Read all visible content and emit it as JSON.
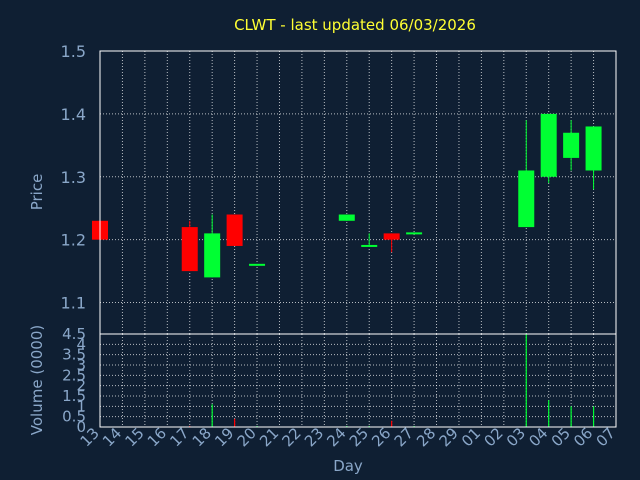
{
  "chart_data": {
    "type": "candlestick",
    "title": "CLWT - last updated 06/03/2026",
    "xlabel": "Day",
    "colors": {
      "background": "#0f1f33",
      "up": "#00ff33",
      "down": "#ff0000",
      "title": "#ffff33",
      "axis_text": "#8aa7c9",
      "grid": "#ffffff"
    },
    "x_ticks": [
      "13",
      "14",
      "15",
      "16",
      "17",
      "18",
      "19",
      "20",
      "21",
      "22",
      "23",
      "24",
      "25",
      "26",
      "27",
      "28",
      "29",
      "01",
      "02",
      "03",
      "04",
      "05",
      "06",
      "07"
    ],
    "price_panel": {
      "ylabel": "Price",
      "ylim": [
        1.05,
        1.5
      ],
      "y_ticks": [
        "1.1",
        "1.2",
        "1.3",
        "1.4",
        "1.5"
      ],
      "y_tick_values": [
        1.1,
        1.2,
        1.3,
        1.4,
        1.5
      ],
      "candles": [
        {
          "day": "13",
          "open": 1.23,
          "high": 1.23,
          "low": 1.2,
          "close": 1.2
        },
        {
          "day": "17",
          "open": 1.22,
          "high": 1.23,
          "low": 1.15,
          "close": 1.15
        },
        {
          "day": "18",
          "open": 1.14,
          "high": 1.24,
          "low": 1.14,
          "close": 1.21
        },
        {
          "day": "19",
          "open": 1.24,
          "high": 1.24,
          "low": 1.19,
          "close": 1.19
        },
        {
          "day": "20",
          "open": 1.16,
          "high": 1.16,
          "low": 1.16,
          "close": 1.16
        },
        {
          "day": "24",
          "open": 1.23,
          "high": 1.24,
          "low": 1.23,
          "close": 1.24
        },
        {
          "day": "25",
          "open": 1.19,
          "high": 1.21,
          "low": 1.19,
          "close": 1.19
        },
        {
          "day": "26",
          "open": 1.21,
          "high": 1.21,
          "low": 1.18,
          "close": 1.2
        },
        {
          "day": "27",
          "open": 1.21,
          "high": 1.21,
          "low": 1.21,
          "close": 1.21
        },
        {
          "day": "03",
          "open": 1.22,
          "high": 1.39,
          "low": 1.22,
          "close": 1.31
        },
        {
          "day": "04",
          "open": 1.3,
          "high": 1.4,
          "low": 1.29,
          "close": 1.4
        },
        {
          "day": "05",
          "open": 1.33,
          "high": 1.39,
          "low": 1.31,
          "close": 1.37
        },
        {
          "day": "06",
          "open": 1.31,
          "high": 1.38,
          "low": 1.28,
          "close": 1.38
        }
      ]
    },
    "volume_panel": {
      "ylabel": "Volume (0000)",
      "ylim": [
        0,
        4.5
      ],
      "y_ticks": [
        "0",
        "0.5",
        "1",
        "1.5",
        "2",
        "2.5",
        "3",
        "3.5",
        "4",
        "4.5"
      ],
      "y_tick_values": [
        0,
        0.5,
        1,
        1.5,
        2,
        2.5,
        3,
        3.5,
        4,
        4.5
      ],
      "bars": [
        {
          "day": "13",
          "value": 0,
          "direction": "down"
        },
        {
          "day": "17",
          "value": 0.05,
          "direction": "down"
        },
        {
          "day": "18",
          "value": 1.1,
          "direction": "up"
        },
        {
          "day": "19",
          "value": 0.4,
          "direction": "down"
        },
        {
          "day": "20",
          "value": 0.05,
          "direction": "up"
        },
        {
          "day": "24",
          "value": 0.05,
          "direction": "up"
        },
        {
          "day": "25",
          "value": 0.05,
          "direction": "up"
        },
        {
          "day": "26",
          "value": 0.3,
          "direction": "down"
        },
        {
          "day": "27",
          "value": 0.05,
          "direction": "up"
        },
        {
          "day": "03",
          "value": 4.5,
          "direction": "up"
        },
        {
          "day": "04",
          "value": 1.3,
          "direction": "up"
        },
        {
          "day": "05",
          "value": 1.0,
          "direction": "up"
        },
        {
          "day": "06",
          "value": 1.0,
          "direction": "up"
        }
      ]
    }
  }
}
